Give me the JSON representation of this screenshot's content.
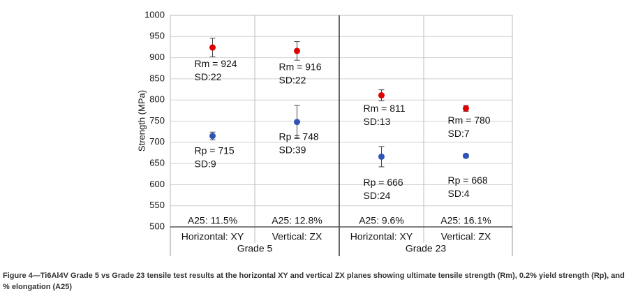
{
  "chart_data": {
    "type": "errorbar",
    "y_label": "Strength (MPa)",
    "categories": [
      "Horizontal: XY",
      "Vertical: ZX",
      "Horizontal: XY",
      "Vertical: ZX"
    ],
    "groups": [
      {
        "name": "Grade 5",
        "span": [
          0,
          1
        ]
      },
      {
        "name": "Grade 23",
        "span": [
          2,
          3
        ]
      }
    ],
    "series": [
      {
        "name": "Rm",
        "color": "#e00000",
        "values": [
          924,
          916,
          811,
          780
        ],
        "errors": [
          22,
          22,
          13,
          7
        ],
        "value_labels": [
          "Rm = 924",
          "Rm = 916",
          "Rm = 811",
          "Rm = 780"
        ],
        "error_labels": [
          "SD:22",
          "SD:22",
          "SD:13",
          "SD:7"
        ]
      },
      {
        "name": "Rp",
        "color": "#2f54b8",
        "values": [
          715,
          748,
          666,
          668
        ],
        "errors": [
          9,
          39,
          24,
          4
        ],
        "value_labels": [
          "Rp = 715",
          "Rp = 748",
          "Rp = 666",
          "Rp = 668"
        ],
        "error_labels": [
          "SD:9",
          "SD:39",
          "SD:24",
          "SD:4"
        ]
      }
    ],
    "elongation_labels": [
      "A25: 11.5%",
      "A25: 12.8%",
      "A25: 9.6%",
      "A25: 16.1%"
    ],
    "ylim": [
      500,
      1000
    ],
    "yticks": [
      500,
      550,
      600,
      650,
      700,
      750,
      800,
      850,
      900,
      950,
      1000
    ],
    "grid": true,
    "caption": "Figure 4—Ti6Al4V Grade 5 vs Grade 23 tensile test results at the horizontal XY and vertical ZX planes showing ultimate tensile strength (Rm), 0.2% yield strength (Rp), and % elongation (A25)"
  }
}
